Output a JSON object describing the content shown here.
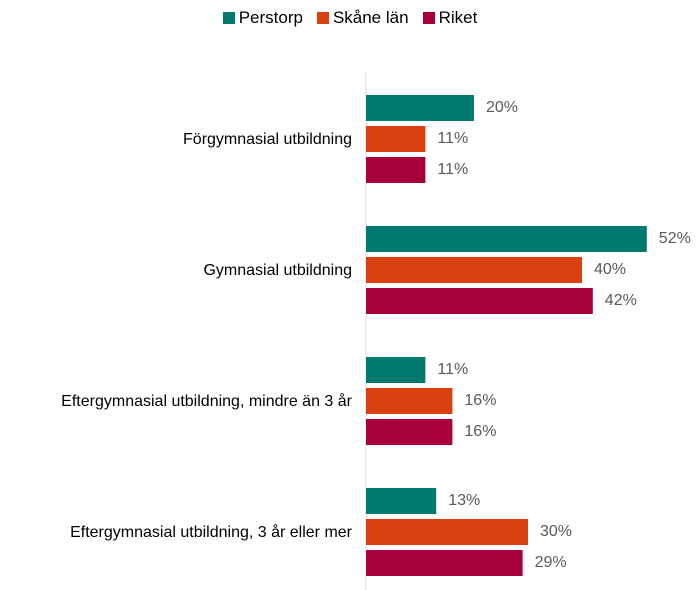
{
  "chart_data": {
    "type": "bar",
    "orientation": "horizontal",
    "categories": [
      "Förgymnasial utbildning",
      "Gymnasial utbildning",
      "Eftergymnasial utbildning, mindre än 3 år",
      "Eftergymnasial utbildning, 3 år eller mer"
    ],
    "series": [
      {
        "name": "Perstorp",
        "color": "#007a6e",
        "values": [
          20,
          52,
          11,
          13
        ],
        "value_labels": [
          "20%",
          "52%",
          "11%",
          "13%"
        ]
      },
      {
        "name": "Skåne län",
        "color": "#d9400f",
        "values": [
          11,
          40,
          16,
          30
        ],
        "value_labels": [
          "11%",
          "40%",
          "16%",
          "30%"
        ]
      },
      {
        "name": "Riket",
        "color": "#a8003d",
        "values": [
          11,
          42,
          16,
          29
        ],
        "value_labels": [
          "11%",
          "42%",
          "16%",
          "29%"
        ]
      }
    ],
    "legend": "top"
  }
}
